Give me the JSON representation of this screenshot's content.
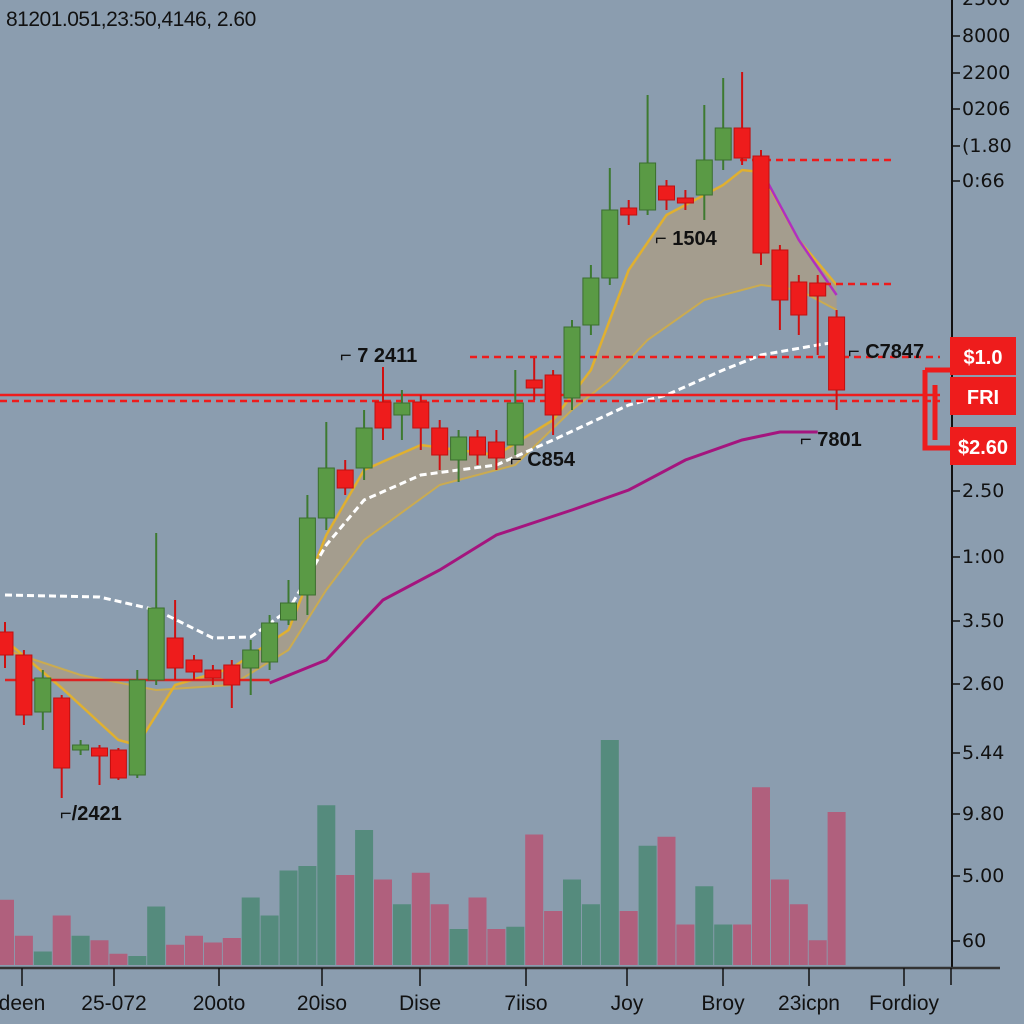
{
  "header": {
    "text": "8​1201.051,23:50,4146, 2.60"
  },
  "price_tags": [
    {
      "label": "$1.0",
      "color": "#ee1c1c"
    },
    {
      "label": "FRI",
      "color": "#ee1c1c"
    },
    {
      "label": "$2.60",
      "color": "#ee1c1c"
    }
  ],
  "colors": {
    "background": "#8b9daf",
    "up": "#5a9a45",
    "down": "#ee1c1c",
    "volume_up": "#4f8a78",
    "volume_down": "#b45a78",
    "ma_white": "#ffffff",
    "band": "#e0b030",
    "band_fill": "#a89e88",
    "ma_magenta": "#a4157e",
    "ma_red": "#dd2222"
  },
  "chart_data": {
    "type": "candlestick",
    "ylim": [
      0,
      97
    ],
    "grid": false,
    "y_tick_labels": [
      "2500",
      "8000",
      "2200",
      "0206",
      "(1.80",
      "0:66",
      "2.50",
      "1:00",
      "3.50",
      "2.60",
      "5.44",
      "9.80",
      "5.00",
      "60"
    ],
    "x_tick_labels": [
      "deen",
      "25-072",
      "20oto",
      "20iso",
      "Dise",
      "7iiso",
      "Joy",
      "Broy",
      "23icpn",
      "Fordioy"
    ],
    "candles": [
      [
        33.8,
        34.8,
        30.2,
        31.5
      ],
      [
        31.5,
        32,
        24.5,
        25.5
      ],
      [
        25.8,
        30,
        24,
        29.2
      ],
      [
        27.2,
        27.5,
        17.2,
        20.2
      ],
      [
        22,
        23,
        21.5,
        22.5
      ],
      [
        22.2,
        22.5,
        18.5,
        21.4
      ],
      [
        22,
        22.2,
        19,
        19.2
      ],
      [
        19.5,
        30,
        19.2,
        29
      ],
      [
        29,
        43.7,
        28.5,
        36.2
      ],
      [
        33.2,
        37,
        29,
        30.2
      ],
      [
        31,
        31.5,
        29,
        29.8
      ],
      [
        30,
        30.5,
        28.5,
        29.2
      ],
      [
        30.5,
        31,
        26.2,
        28.5
      ],
      [
        30.2,
        33,
        27.5,
        32
      ],
      [
        30.8,
        35.5,
        30,
        34.7
      ],
      [
        35,
        39,
        34.5,
        36.7
      ],
      [
        37.5,
        47.5,
        35.5,
        45.2
      ],
      [
        45.2,
        54.8,
        44,
        50.2
      ],
      [
        50,
        51,
        47.5,
        48.2
      ],
      [
        50.2,
        56,
        49,
        54.2
      ],
      [
        56.8,
        60.3,
        53,
        54.2
      ],
      [
        55.5,
        58,
        53,
        56.7
      ],
      [
        56.8,
        57.5,
        52,
        54.2
      ],
      [
        54.2,
        55,
        50,
        51.5
      ],
      [
        51,
        54,
        48.8,
        53.3
      ],
      [
        53.3,
        54,
        50.5,
        51.5
      ],
      [
        52.8,
        54,
        50,
        51.2
      ],
      [
        52.5,
        60,
        51.5,
        56.7
      ],
      [
        59,
        61.2,
        57,
        58.2
      ],
      [
        59.5,
        60,
        53.5,
        55.5
      ],
      [
        57.2,
        65,
        56,
        64.3
      ],
      [
        64.5,
        70.5,
        63.5,
        69.2
      ],
      [
        69.2,
        80.2,
        68.5,
        76
      ],
      [
        76.2,
        77,
        74.5,
        75.5
      ],
      [
        76,
        87.5,
        75.5,
        80.7
      ],
      [
        78.4,
        79,
        76,
        77
      ],
      [
        77.2,
        78,
        76,
        76.7
      ],
      [
        77.5,
        86.5,
        75,
        81
      ],
      [
        81,
        89.2,
        80,
        84.2
      ],
      [
        84.2,
        89.8,
        80.5,
        81.2
      ],
      [
        81.4,
        82,
        70.5,
        71.7
      ],
      [
        72,
        72.5,
        64,
        67
      ],
      [
        68.8,
        69.5,
        63.5,
        65.5
      ],
      [
        68.7,
        69.5,
        61.5,
        67.4
      ],
      [
        65.3,
        66,
        56,
        58
      ]
    ],
    "candle_format": [
      "open",
      "high",
      "low",
      "close"
    ],
    "volume": [
      29,
      13,
      6,
      22,
      13,
      11,
      5,
      4,
      26,
      9,
      13,
      10,
      12,
      30,
      22,
      42,
      44,
      71,
      40,
      60,
      38,
      27,
      41,
      27,
      16,
      30,
      16,
      17,
      58,
      24,
      38,
      27,
      100,
      24,
      53,
      57,
      18,
      35,
      18,
      18,
      79,
      38,
      27,
      11,
      68
    ],
    "lines": {
      "ma_white_dashed": [
        [
          0,
          37.5
        ],
        [
          5,
          37.3
        ],
        [
          8,
          36
        ],
        [
          11,
          33.2
        ],
        [
          13,
          33.3
        ],
        [
          15,
          36
        ],
        [
          17,
          42.5
        ],
        [
          19,
          47
        ],
        [
          22,
          49.5
        ],
        [
          26,
          50.5
        ],
        [
          29,
          53
        ],
        [
          33,
          56.5
        ],
        [
          35,
          57.5
        ],
        [
          38,
          60
        ],
        [
          40,
          61.5
        ],
        [
          43,
          62.5
        ],
        [
          44,
          62.8
        ]
      ],
      "band_upper": [
        [
          0,
          33
        ],
        [
          3,
          28.2
        ],
        [
          6,
          23
        ],
        [
          7,
          22.5
        ],
        [
          9,
          28.5
        ],
        [
          12,
          30.2
        ],
        [
          15,
          34
        ],
        [
          17,
          43.5
        ],
        [
          19,
          50
        ],
        [
          22,
          52.5
        ],
        [
          26,
          51.5
        ],
        [
          29,
          55
        ],
        [
          31,
          60
        ],
        [
          33,
          70
        ],
        [
          35,
          75.5
        ],
        [
          38,
          78.5
        ],
        [
          39,
          80
        ],
        [
          40,
          79.8
        ],
        [
          42,
          73
        ],
        [
          44,
          68.5
        ]
      ],
      "band_lower": [
        [
          0,
          32
        ],
        [
          4,
          29.5
        ],
        [
          8,
          28
        ],
        [
          12,
          28.5
        ],
        [
          15,
          32
        ],
        [
          17,
          38
        ],
        [
          19,
          43
        ],
        [
          23,
          48.5
        ],
        [
          27,
          50.5
        ],
        [
          30,
          56
        ],
        [
          32,
          59
        ],
        [
          34,
          63
        ],
        [
          37,
          67
        ],
        [
          40,
          68.5
        ],
        [
          42,
          68
        ],
        [
          44,
          66
        ]
      ],
      "ma_red": [
        [
          0,
          29
        ],
        [
          14,
          29
        ]
      ],
      "ma_magenta": [
        [
          14,
          28.7
        ],
        [
          17,
          31
        ],
        [
          20,
          37
        ],
        [
          23,
          40
        ],
        [
          26,
          43.5
        ],
        [
          30,
          46
        ],
        [
          33,
          48
        ],
        [
          36,
          51
        ],
        [
          39,
          53
        ],
        [
          41,
          53.8
        ],
        [
          43,
          53.8
        ]
      ],
      "ma_purple_short": [
        [
          40,
          80
        ],
        [
          42,
          73
        ],
        [
          44,
          67.5
        ]
      ]
    },
    "levels": [
      {
        "price": 57.5,
        "style": "solid"
      },
      {
        "price": 56.9,
        "style": "dashed"
      },
      {
        "price": 61.3,
        "style": "dashed"
      },
      {
        "price": 81,
        "style": "dashed"
      },
      {
        "price": 68.6,
        "style": "dashed"
      }
    ],
    "annotations": [
      "⌐/2421",
      "⌐ 7 2411",
      "⌐ C854",
      "⌐ 1504",
      "⌐ C7847",
      "⌐ 7801"
    ]
  }
}
